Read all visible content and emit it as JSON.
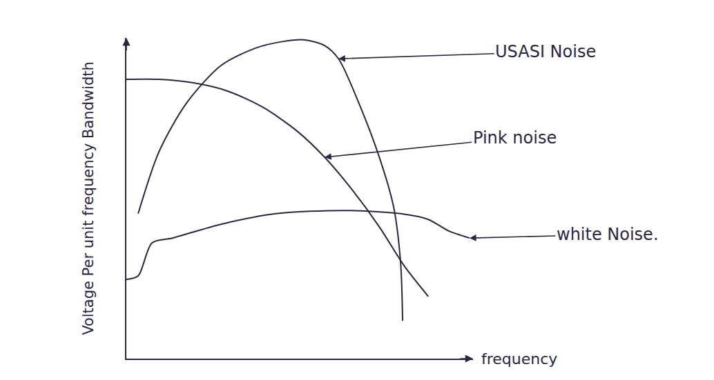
{
  "chart_data": {
    "type": "line",
    "x_label": "frequency",
    "y_label": "Voltage Per unit frequency Bandwidth",
    "xlim": [
      0,
      100
    ],
    "ylim": [
      0,
      100
    ],
    "tick_labels": false,
    "grid": false,
    "series": [
      {
        "name": "USASI Noise",
        "color": "#2b2640",
        "x": [
          3.4,
          9.4,
          17.3,
          27.3,
          37.2,
          45.2,
          51.2,
          57.2,
          61.2,
          67.1,
          73.1,
          77.1,
          79.1,
          79.7
        ],
        "values": [
          45.2,
          64.5,
          79.6,
          91.4,
          96.8,
          98.9,
          99.4,
          97.6,
          93.5,
          79.6,
          62.4,
          47.3,
          30.1,
          11.8
        ]
      },
      {
        "name": "Pink noise",
        "color": "#2b2640",
        "x": [
          0,
          9.4,
          19.3,
          29.3,
          39.2,
          49.2,
          57.2,
          65.1,
          73.1,
          80.1,
          87.1
        ],
        "values": [
          87.1,
          87.1,
          86.0,
          83.4,
          78.5,
          71.0,
          62.8,
          52.7,
          40.9,
          29.0,
          19.4
        ]
      },
      {
        "name": "white Noise.",
        "color": "#2b2640",
        "x": [
          0,
          3.4,
          7.4,
          13.3,
          27.3,
          43.2,
          63.1,
          79.1,
          87.1,
          93.0,
          99.0
        ],
        "values": [
          24.7,
          25.8,
          36.1,
          37.6,
          41.9,
          45.2,
          46.2,
          45.2,
          43.4,
          39.8,
          37.6
        ]
      }
    ]
  }
}
